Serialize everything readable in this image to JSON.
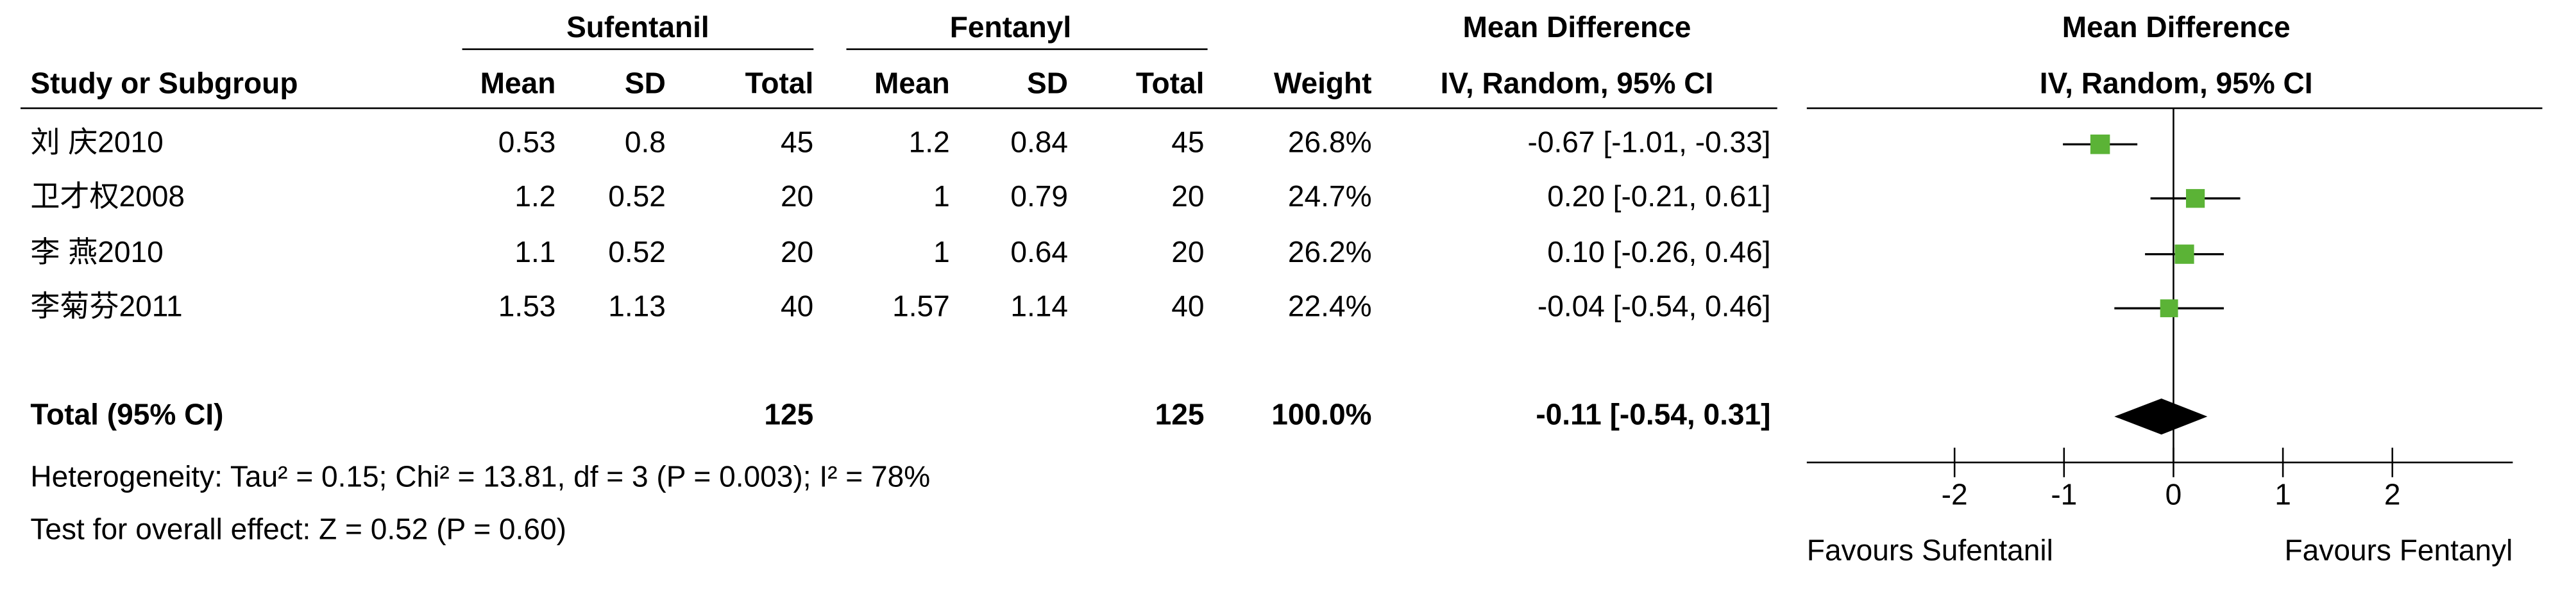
{
  "chart_data": {
    "type": "forest",
    "group_headers": [
      "Sufentanil",
      "Fentanyl",
      "Mean Difference",
      "Mean Difference"
    ],
    "columns": [
      "Study or Subgroup",
      "Mean",
      "SD",
      "Total",
      "Mean",
      "SD",
      "Total",
      "Weight",
      "IV, Random, 95% CI",
      "IV, Random, 95% CI"
    ],
    "studies": [
      {
        "name": "刘 庆2010",
        "exp_mean": 0.53,
        "exp_sd": 0.8,
        "exp_total": 45,
        "ctl_mean": 1.2,
        "ctl_sd": 0.84,
        "ctl_total": 45,
        "weight": 26.8,
        "weight_label": "26.8%",
        "md": -0.67,
        "ci": [
          -1.01,
          -0.33
        ],
        "md_label": "-0.67 [-1.01, -0.33]"
      },
      {
        "name": "卫才权2008",
        "exp_mean": 1.2,
        "exp_sd": 0.52,
        "exp_total": 20,
        "ctl_mean": 1,
        "ctl_sd": 0.79,
        "ctl_total": 20,
        "weight": 24.7,
        "weight_label": "24.7%",
        "md": 0.2,
        "ci": [
          -0.21,
          0.61
        ],
        "md_label": "0.20 [-0.21, 0.61]"
      },
      {
        "name": "李 燕2010",
        "exp_mean": 1.1,
        "exp_sd": 0.52,
        "exp_total": 20,
        "ctl_mean": 1,
        "ctl_sd": 0.64,
        "ctl_total": 20,
        "weight": 26.2,
        "weight_label": "26.2%",
        "md": 0.1,
        "ci": [
          -0.26,
          0.46
        ],
        "md_label": "0.10 [-0.26, 0.46]"
      },
      {
        "name": "李菊芬2011",
        "exp_mean": 1.53,
        "exp_sd": 1.13,
        "exp_total": 40,
        "ctl_mean": 1.57,
        "ctl_sd": 1.14,
        "ctl_total": 40,
        "weight": 22.4,
        "weight_label": "22.4%",
        "md": -0.04,
        "ci": [
          -0.54,
          0.46
        ],
        "md_label": "-0.04 [-0.54, 0.46]"
      }
    ],
    "total": {
      "name": "Total (95% CI)",
      "exp_total": 125,
      "ctl_total": 125,
      "weight": 100,
      "weight_label": "100.0%",
      "md": -0.11,
      "ci": [
        -0.54,
        0.31
      ],
      "md_label": "-0.11 [-0.54, 0.31]"
    },
    "heterogeneity": "Heterogeneity: Tau² = 0.15; Chi² = 13.81, df = 3 (P = 0.003); I² = 78%",
    "overall_effect": "Test for overall effect: Z = 0.52 (P = 0.60)",
    "xlim": [
      -3.35,
      3.1
    ],
    "xticks": [
      -2,
      -1,
      0,
      1,
      2
    ],
    "favours_left": "Favours Sufentanil",
    "favours_right": "Favours Fentanyl",
    "marker_color": "#5bb336",
    "total_color": "#000000"
  }
}
